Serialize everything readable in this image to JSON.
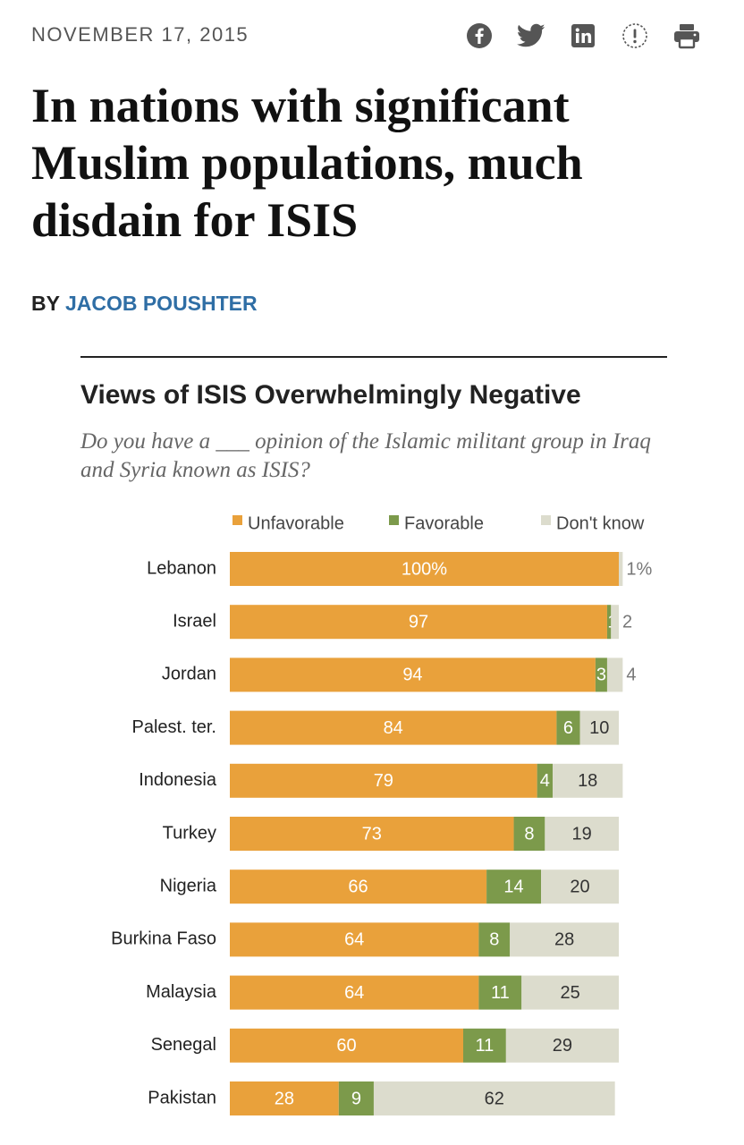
{
  "article": {
    "date": "NOVEMBER 17, 2015",
    "headline": "In nations with significant Muslim populations, much disdain for ISIS",
    "byline_prefix": "BY",
    "author": "JACOB POUSHTER"
  },
  "share_icons": [
    "facebook-icon",
    "twitter-icon",
    "linkedin-icon",
    "report-icon",
    "print-icon"
  ],
  "chart_data": {
    "type": "bar",
    "stacked": true,
    "orientation": "horizontal",
    "title": "Views of ISIS Overwhelmingly Negative",
    "subtitle": "Do you have a ___ opinion of the Islamic militant group in Iraq and Syria known as ISIS?",
    "categories": [
      "Lebanon",
      "Israel",
      "Jordan",
      "Palest. ter.",
      "Indonesia",
      "Turkey",
      "Nigeria",
      "Burkina Faso",
      "Malaysia",
      "Senegal",
      "Pakistan"
    ],
    "series": [
      {
        "name": "Unfavorable",
        "color": "#e9a13b",
        "values": [
          100,
          97,
          94,
          84,
          79,
          73,
          66,
          64,
          64,
          60,
          28
        ],
        "labels": [
          "100%",
          "97",
          "94",
          "84",
          "79",
          "73",
          "66",
          "64",
          "64",
          "60",
          "28"
        ]
      },
      {
        "name": "Favorable",
        "color": "#7c9a4b",
        "values": [
          0,
          1,
          3,
          6,
          4,
          8,
          14,
          8,
          11,
          11,
          9
        ],
        "labels": [
          "",
          "1",
          "3",
          "6",
          "4",
          "8",
          "14",
          "8",
          "11",
          "11",
          "9"
        ]
      },
      {
        "name": "Don't know",
        "color": "#dcdccd",
        "values": [
          1,
          2,
          4,
          10,
          18,
          19,
          20,
          28,
          25,
          29,
          62
        ],
        "labels": [
          "1%",
          "2",
          "4",
          "10",
          "18",
          "19",
          "20",
          "28",
          "25",
          "29",
          "62"
        ]
      }
    ],
    "xlim": [
      0,
      100
    ],
    "legend": "top"
  }
}
